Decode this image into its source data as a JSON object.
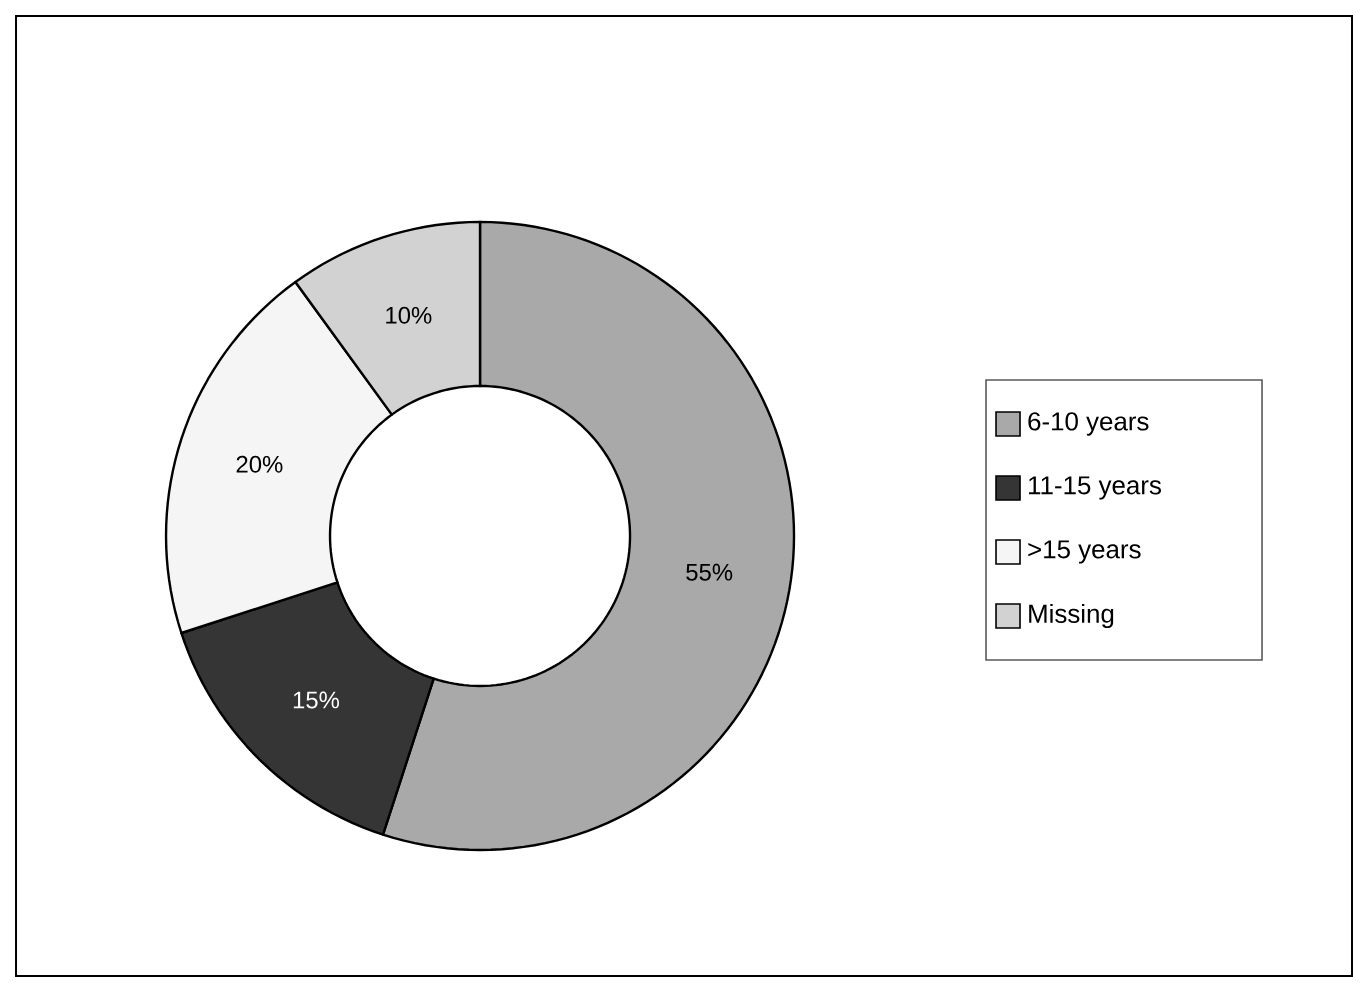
{
  "chart_data": {
    "type": "donut",
    "categories": [
      "6-10 years",
      "11-15 years",
      ">15 years",
      "Missing"
    ],
    "values": [
      55,
      15,
      20,
      10
    ],
    "value_labels": [
      "55%",
      "15%",
      "20%",
      "10%"
    ],
    "colors": [
      "#a9a9a9",
      "#353535",
      "#f5f5f5",
      "#d2d2d2"
    ],
    "legend": "right"
  }
}
